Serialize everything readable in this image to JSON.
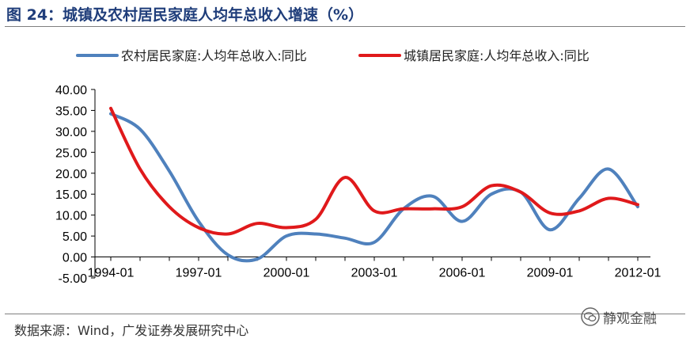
{
  "header": {
    "title": "图 24：城镇及农村居民家庭人均年总收入增速（%）"
  },
  "source": "数据来源：Wind，广发证券发展研究中心",
  "watermark": {
    "text": "静观金融",
    "icon": "wechat-icon"
  },
  "chart_data": {
    "type": "line",
    "title": "",
    "xlabel": "",
    "ylabel": "",
    "ylim": [
      -5,
      40
    ],
    "yticks": [
      "40.00",
      "35.00",
      "30.00",
      "25.00",
      "20.00",
      "15.00",
      "10.00",
      "5.00",
      "0.00",
      "-5.00"
    ],
    "xticks": [
      "1994-01",
      "1997-01",
      "2000-01",
      "2003-01",
      "2006-01",
      "2009-01",
      "2012-01"
    ],
    "grid": false,
    "legend_position": "top",
    "x": [
      "1994-01",
      "1995-01",
      "1996-01",
      "1997-01",
      "1998-01",
      "1999-01",
      "2000-01",
      "2001-01",
      "2002-01",
      "2003-01",
      "2004-01",
      "2005-01",
      "2006-01",
      "2007-01",
      "2008-01",
      "2009-01",
      "2010-01",
      "2011-01",
      "2012-01"
    ],
    "series": [
      {
        "name": "农村居民家庭:人均年总收入:同比",
        "color": "#4f81bd",
        "values": [
          34.2,
          30.5,
          20.5,
          8.5,
          0.5,
          -0.5,
          5.0,
          5.5,
          4.5,
          3.5,
          11.5,
          14.5,
          8.5,
          15.0,
          15.5,
          6.5,
          14.0,
          21.0,
          12.0
        ]
      },
      {
        "name": "城镇居民家庭:人均年总收入:同比",
        "color": "#e0191b",
        "values": [
          35.5,
          21.0,
          12.0,
          7.0,
          5.5,
          8.0,
          7.0,
          9.0,
          19.0,
          11.0,
          11.5,
          11.5,
          12.0,
          17.0,
          15.5,
          10.5,
          11.0,
          14.0,
          12.5
        ]
      }
    ]
  }
}
